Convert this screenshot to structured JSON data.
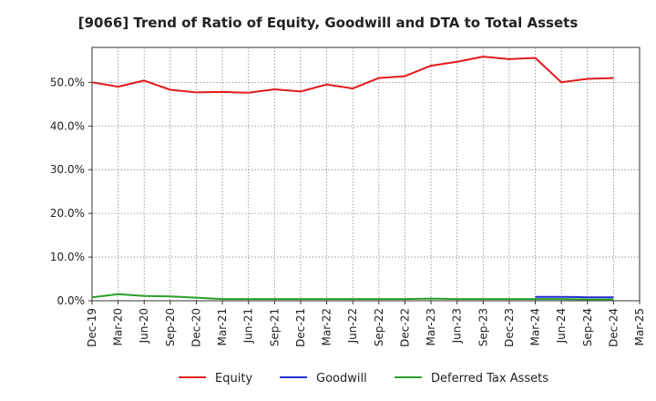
{
  "chart_data": {
    "type": "line",
    "title": "[9066]  Trend of Ratio of Equity, Goodwill and DTA to Total Assets",
    "xlabel": "",
    "ylabel": "",
    "ylim": [
      0,
      58
    ],
    "yticks": [
      "0.0%",
      "10.0%",
      "20.0%",
      "30.0%",
      "40.0%",
      "50.0%"
    ],
    "ytick_values": [
      0,
      10,
      20,
      30,
      40,
      50
    ],
    "categories": [
      "Dec-19",
      "Mar-20",
      "Jun-20",
      "Sep-20",
      "Dec-20",
      "Mar-21",
      "Jun-21",
      "Sep-21",
      "Dec-21",
      "Mar-22",
      "Jun-22",
      "Sep-22",
      "Dec-22",
      "Mar-23",
      "Jun-23",
      "Sep-23",
      "Dec-23",
      "Mar-24",
      "Jun-24",
      "Sep-24",
      "Dec-24",
      "Mar-25"
    ],
    "grid": true,
    "legend_position": "bottom",
    "series": [
      {
        "name": "Equity",
        "color": "#e31a1c",
        "values": [
          50.0,
          49.0,
          50.4,
          48.3,
          47.7,
          47.8,
          47.6,
          48.4,
          47.9,
          49.5,
          48.6,
          51.0,
          51.4,
          53.8,
          54.7,
          55.9,
          55.3,
          55.6,
          50.0,
          50.8,
          51.0,
          null
        ]
      },
      {
        "name": "Goodwill",
        "color": "#1f2fd1",
        "values": [
          null,
          null,
          null,
          null,
          null,
          null,
          null,
          null,
          null,
          null,
          null,
          null,
          null,
          null,
          null,
          null,
          null,
          0.9,
          0.9,
          0.8,
          0.8,
          null
        ]
      },
      {
        "name": "Deferred Tax Assets",
        "color": "#2ca02c",
        "values": [
          0.8,
          1.5,
          1.1,
          1.0,
          0.7,
          0.4,
          0.4,
          0.4,
          0.4,
          0.4,
          0.4,
          0.4,
          0.4,
          0.5,
          0.4,
          0.4,
          0.4,
          0.4,
          0.4,
          0.3,
          0.3,
          null
        ]
      }
    ]
  }
}
